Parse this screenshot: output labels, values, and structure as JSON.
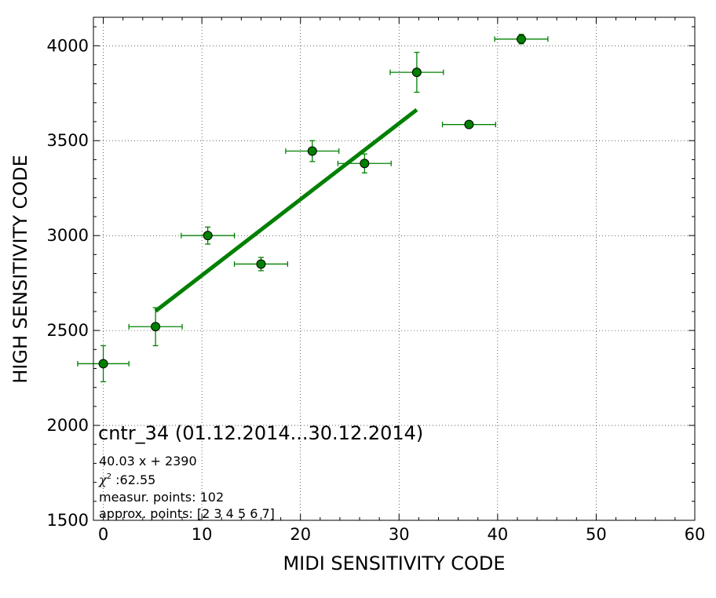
{
  "chart_data": {
    "type": "scatter",
    "xlabel": "MIDI SENSITIVITY CODE",
    "ylabel": "HIGH SENSITIVITY CODE",
    "xlim": [
      -1,
      60
    ],
    "ylim": [
      1500,
      4150
    ],
    "xticks": [
      0,
      10,
      20,
      30,
      40,
      50,
      60
    ],
    "yticks": [
      1500,
      2000,
      2500,
      3000,
      3500,
      4000
    ],
    "x_minor_step": 2,
    "y_minor_step": 100,
    "grid": true,
    "grid_style": "dotted",
    "series": [
      {
        "marker": "circle",
        "color": "#008000",
        "x": [
          0.0,
          5.3,
          10.6,
          16.0,
          21.2,
          26.5,
          31.8,
          37.1,
          42.4
        ],
        "y": [
          2325,
          2520,
          3000,
          2850,
          3445,
          3380,
          3860,
          3585,
          4035
        ],
        "xerr": [
          2.6,
          2.7,
          2.7,
          2.7,
          2.7,
          2.7,
          2.7,
          2.7,
          2.7
        ],
        "yerr": [
          95,
          100,
          45,
          35,
          55,
          50,
          105,
          10,
          25
        ]
      }
    ],
    "fit": {
      "slope": 40.03,
      "intercept": 2390,
      "x_range": [
        5.3,
        31.8
      ],
      "color": "#008000"
    },
    "annotations": {
      "title": "cntr_34 (01.12.2014...30.12.2014)",
      "equation": "40.03 x + 2390",
      "chi_symbol": "χ",
      "chi_sup": "2",
      "chi_value": " :62.55",
      "measur_points": "measur. points: 102",
      "approx_points": "approx. points: [2 3 4 5 6 7]"
    }
  }
}
